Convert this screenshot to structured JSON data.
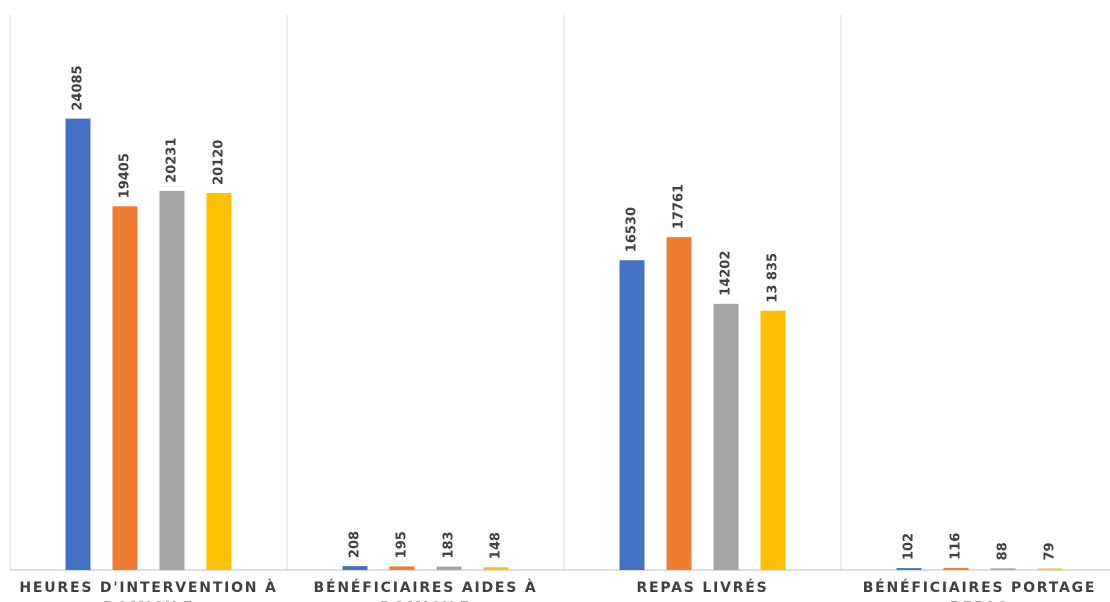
{
  "chart_data": {
    "type": "bar",
    "categories": [
      "HEURES D'INTERVENTION À DOMICILE",
      "BÉNÉFICIAIRES AIDES À DOMICILE",
      "REPAS LIVRÉS",
      "BÉNÉFICIAIRES PORTAGE REPAS"
    ],
    "series": [
      {
        "color": "#4472c4",
        "values": [
          24085,
          208,
          16530,
          102
        ]
      },
      {
        "color": "#ed7d31",
        "values": [
          19405,
          195,
          17761,
          116
        ]
      },
      {
        "color": "#a5a5a5",
        "values": [
          20231,
          183,
          14202,
          88
        ]
      },
      {
        "color": "#ffc000",
        "values": [
          20120,
          148,
          13835,
          79
        ],
        "value_labels": [
          "20120",
          "148",
          "13 835",
          "79"
        ]
      }
    ],
    "ylim": [
      0,
      27000
    ]
  }
}
